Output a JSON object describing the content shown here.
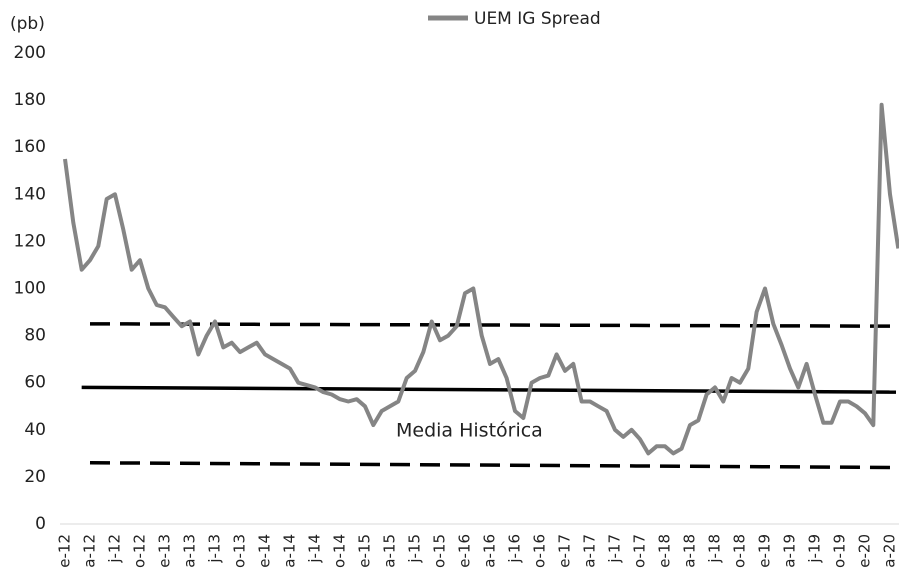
{
  "chart_data": {
    "type": "line",
    "unit_label": "(pb)",
    "annotation": "Media Histórica",
    "ylim": [
      0,
      200
    ],
    "yticks": [
      0,
      20,
      40,
      60,
      80,
      100,
      120,
      140,
      160,
      180,
      200
    ],
    "grid": false,
    "legend": "top",
    "categories": [
      "e-12",
      null,
      null,
      "a-12",
      null,
      null,
      "j-12",
      null,
      null,
      "o-12",
      null,
      null,
      "e-13",
      null,
      null,
      "a-13",
      null,
      null,
      "j-13",
      null,
      null,
      "o-13",
      null,
      null,
      "e-14",
      null,
      null,
      "a-14",
      null,
      null,
      "j-14",
      null,
      null,
      "o-14",
      null,
      null,
      "e-15",
      null,
      null,
      "a-15",
      null,
      null,
      "j-15",
      null,
      null,
      "o-15",
      null,
      null,
      "e-16",
      null,
      null,
      "a-16",
      null,
      null,
      "j-16",
      null,
      null,
      "o-16",
      null,
      null,
      "e-17",
      null,
      null,
      "a-17",
      null,
      null,
      "j-17",
      null,
      null,
      "o-17",
      null,
      null,
      "e-18",
      null,
      null,
      "a-18",
      null,
      null,
      "j-18",
      null,
      null,
      "o-18",
      null,
      null,
      "e-19",
      null,
      null,
      "a-19",
      null,
      null,
      "j-19",
      null,
      null,
      "o-19",
      null,
      null,
      "e-20",
      null,
      null,
      "a-20",
      null
    ],
    "series": [
      {
        "name": "UEM IG Spread",
        "color": "#858585",
        "values": [
          155,
          128,
          108,
          112,
          118,
          138,
          140,
          125,
          108,
          112,
          100,
          93,
          92,
          88,
          84,
          86,
          72,
          80,
          86,
          75,
          77,
          73,
          75,
          77,
          72,
          70,
          68,
          66,
          60,
          59,
          58,
          56,
          55,
          53,
          52,
          53,
          50,
          42,
          48,
          50,
          52,
          62,
          65,
          73,
          86,
          78,
          80,
          84,
          98,
          100,
          80,
          68,
          70,
          62,
          48,
          45,
          60,
          62,
          63,
          72,
          65,
          68,
          52,
          52,
          50,
          48,
          40,
          37,
          40,
          36,
          30,
          33,
          33,
          30,
          32,
          42,
          44,
          55,
          58,
          52,
          62,
          60,
          66,
          90,
          100,
          85,
          76,
          66,
          58,
          68,
          55,
          43,
          43,
          52,
          52,
          50,
          47,
          42,
          178,
          140,
          117
        ]
      }
    ],
    "reference_lines": [
      {
        "start": 85,
        "end": 84,
        "style": "dashed",
        "color": "#000000"
      },
      {
        "start": 58,
        "end": 56,
        "style": "solid",
        "color": "#000000"
      },
      {
        "start": 26,
        "end": 24,
        "style": "dashed",
        "color": "#000000"
      }
    ]
  }
}
